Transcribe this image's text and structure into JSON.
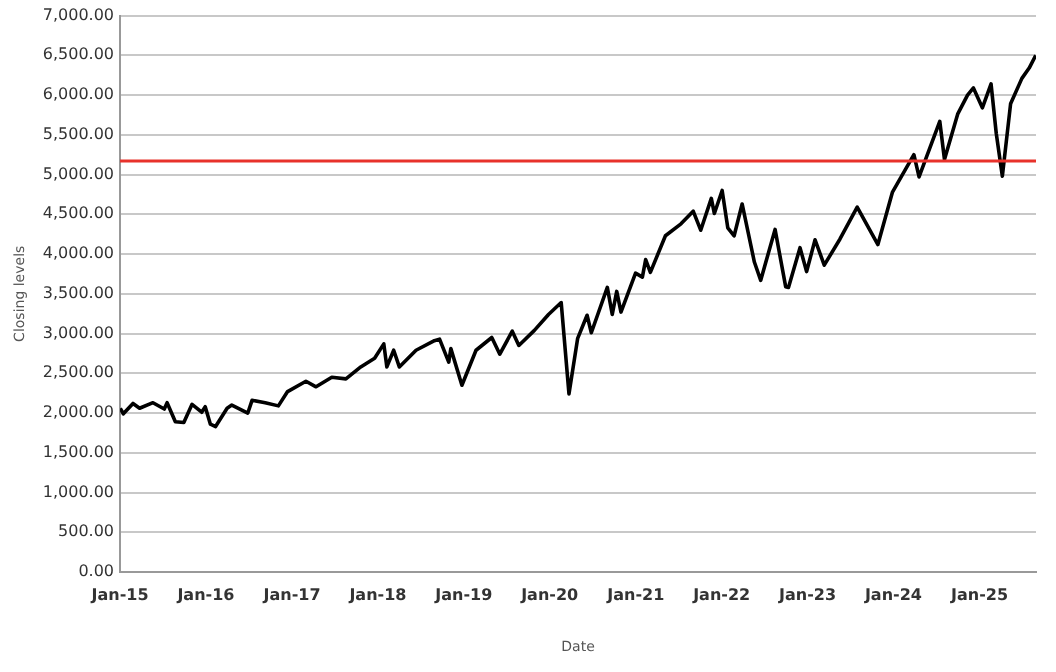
{
  "chart_data": {
    "type": "line",
    "xlabel": "Date",
    "ylabel": "Closing levels",
    "series": [
      {
        "color": "#000000",
        "x": [
          "2015-01-02",
          "2015-01-15",
          "2015-02-25",
          "2015-03-25",
          "2015-05-21",
          "2015-07-08",
          "2015-07-20",
          "2015-08-24",
          "2015-09-29",
          "2015-11-03",
          "2015-12-14",
          "2015-12-29",
          "2016-01-20",
          "2016-02-11",
          "2016-03-31",
          "2016-04-20",
          "2016-06-27",
          "2016-07-15",
          "2016-09-09",
          "2016-11-04",
          "2016-12-13",
          "2017-03-01",
          "2017-04-13",
          "2017-06-19",
          "2017-08-18",
          "2017-10-20",
          "2017-12-18",
          "2018-01-26",
          "2018-02-08",
          "2018-03-09",
          "2018-04-02",
          "2018-06-12",
          "2018-08-29",
          "2018-09-20",
          "2018-10-29",
          "2018-11-07",
          "2018-12-24",
          "2019-02-22",
          "2019-04-30",
          "2019-06-03",
          "2019-07-26",
          "2019-08-23",
          "2019-10-28",
          "2019-12-27",
          "2020-02-19",
          "2020-03-23",
          "2020-04-29",
          "2020-06-08",
          "2020-06-26",
          "2020-09-02",
          "2020-09-23",
          "2020-10-12",
          "2020-10-30",
          "2020-12-31",
          "2021-01-29",
          "2021-02-12",
          "2021-03-04",
          "2021-05-07",
          "2021-07-12",
          "2021-09-02",
          "2021-10-04",
          "2021-11-18",
          "2021-12-01",
          "2022-01-03",
          "2022-01-27",
          "2022-02-23",
          "2022-03-29",
          "2022-05-20",
          "2022-06-16",
          "2022-08-16",
          "2022-09-30",
          "2022-10-12",
          "2022-11-30",
          "2022-12-28",
          "2023-02-02",
          "2023-03-13",
          "2023-05-19",
          "2023-07-31",
          "2023-10-27",
          "2023-12-28",
          "2024-03-28",
          "2024-04-19",
          "2024-07-16",
          "2024-08-05",
          "2024-09-30",
          "2024-11-11",
          "2024-12-06",
          "2025-01-13",
          "2025-02-19",
          "2025-03-13",
          "2025-04-08",
          "2025-05-13",
          "2025-06-30",
          "2025-07-31",
          "2025-08-28"
        ],
        "values": [
          2060,
          1990,
          2120,
          2060,
          2130,
          2050,
          2130,
          1890,
          1880,
          2110,
          2010,
          2080,
          1860,
          1830,
          2060,
          2100,
          2000,
          2160,
          2130,
          2090,
          2270,
          2400,
          2330,
          2450,
          2430,
          2580,
          2690,
          2870,
          2580,
          2790,
          2580,
          2790,
          2910,
          2930,
          2640,
          2810,
          2350,
          2790,
          2950,
          2740,
          3030,
          2850,
          3040,
          3240,
          3390,
          2240,
          2940,
          3230,
          3010,
          3580,
          3240,
          3530,
          3270,
          3760,
          3710,
          3930,
          3770,
          4230,
          4380,
          4540,
          4300,
          4700,
          4510,
          4800,
          4330,
          4230,
          4630,
          3900,
          3670,
          4310,
          3590,
          3580,
          4080,
          3780,
          4180,
          3860,
          4190,
          4590,
          4120,
          4780,
          5250,
          4970,
          5670,
          5190,
          5760,
          6000,
          6090,
          5840,
          6140,
          5520,
          4980,
          5890,
          6210,
          6340,
          6500
        ]
      }
    ],
    "xlim": [
      "2015-01-01",
      "2025-08-29"
    ],
    "xticks": [
      {
        "value": "2015-01",
        "label": "Jan-15"
      },
      {
        "value": "2016-01",
        "label": "Jan-16"
      },
      {
        "value": "2017-01",
        "label": "Jan-17"
      },
      {
        "value": "2018-01",
        "label": "Jan-18"
      },
      {
        "value": "2019-01",
        "label": "Jan-19"
      },
      {
        "value": "2020-01",
        "label": "Jan-20"
      },
      {
        "value": "2021-01",
        "label": "Jan-21"
      },
      {
        "value": "2022-01",
        "label": "Jan-22"
      },
      {
        "value": "2023-01",
        "label": "Jan-23"
      },
      {
        "value": "2024-01",
        "label": "Jan-24"
      },
      {
        "value": "2025-01",
        "label": "Jan-25"
      }
    ],
    "ylim": [
      0,
      7000
    ],
    "yticks": [
      {
        "value": 0,
        "label": "0.00"
      },
      {
        "value": 500,
        "label": "500.00"
      },
      {
        "value": 1000,
        "label": "1,000.00"
      },
      {
        "value": 1500,
        "label": "1,500.00"
      },
      {
        "value": 2000,
        "label": "2,000.00"
      },
      {
        "value": 2500,
        "label": "2,500.00"
      },
      {
        "value": 3000,
        "label": "3,000.00"
      },
      {
        "value": 3500,
        "label": "3,500.00"
      },
      {
        "value": 4000,
        "label": "4,000.00"
      },
      {
        "value": 4500,
        "label": "4,500.00"
      },
      {
        "value": 5000,
        "label": "5,000.00"
      },
      {
        "value": 5500,
        "label": "5,500.00"
      },
      {
        "value": 6000,
        "label": "6,000.00"
      },
      {
        "value": 6500,
        "label": "6,500.00"
      },
      {
        "value": 7000,
        "label": "7,000.00"
      }
    ],
    "ref_lines": [
      {
        "axis": "y",
        "value": 5170,
        "color": "#e8322b"
      }
    ],
    "grid": "y",
    "legend": false,
    "marker": "none",
    "line_style": "solid"
  }
}
